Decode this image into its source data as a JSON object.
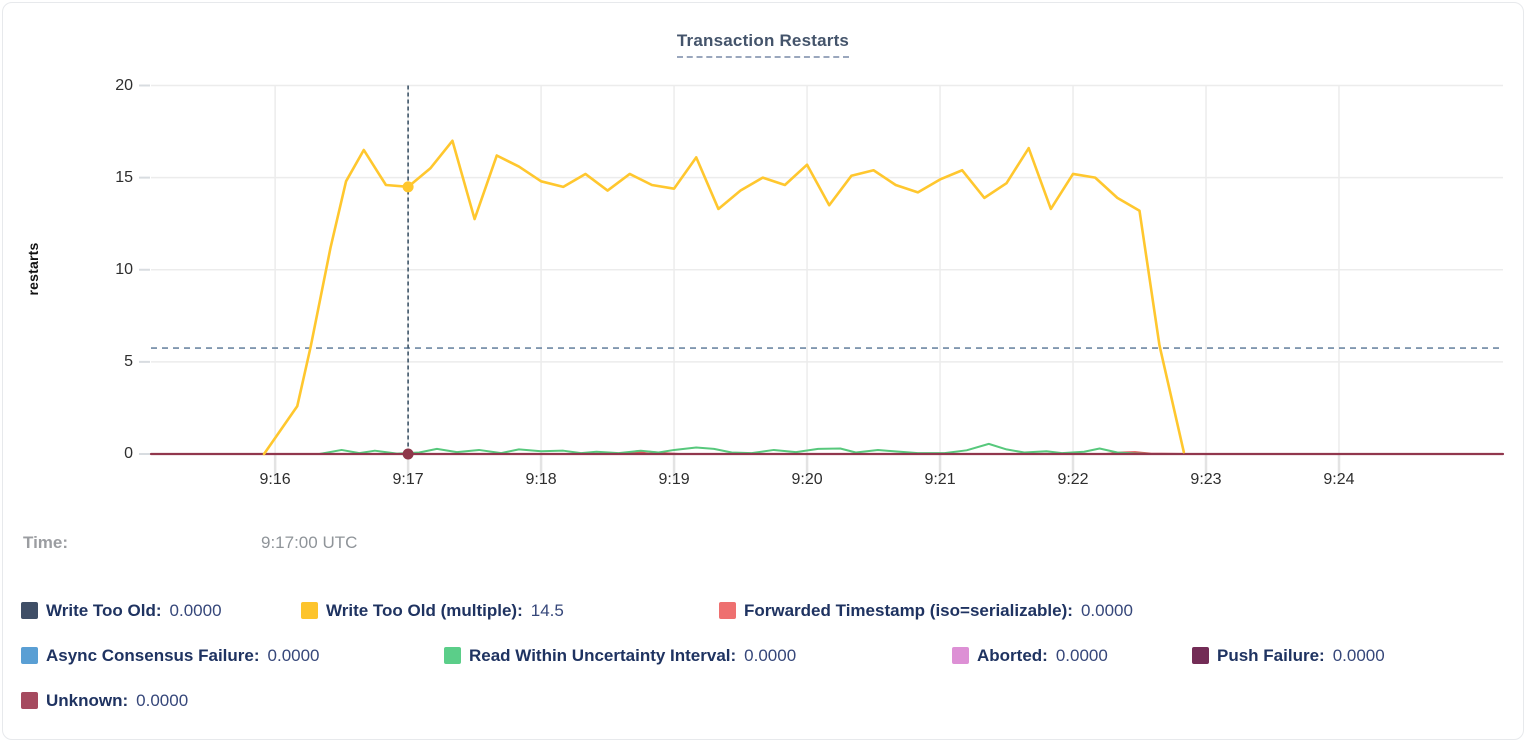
{
  "title": "Transaction Restarts",
  "tooltip": {
    "time_label": "Time:",
    "time_value": "9:17:00 UTC"
  },
  "legend": {
    "rows": [
      [
        {
          "label": "Write Too Old:",
          "value": "0.0000",
          "color": "#3f4e66"
        },
        {
          "label": "Write Too Old (multiple):",
          "value": "14.5",
          "color": "#fdc42c"
        },
        {
          "label": "Forwarded Timestamp (iso=serializable):",
          "value": "0.0000",
          "color": "#ee7070"
        }
      ],
      [
        {
          "label": "Async Consensus Failure:",
          "value": "0.0000",
          "color": "#5a9fd4"
        },
        {
          "label": "Read Within Uncertainty Interval:",
          "value": "0.0000",
          "color": "#5bce89"
        },
        {
          "label": "Aborted:",
          "value": "0.0000",
          "color": "#dd90d5"
        },
        {
          "label": "Push Failure:",
          "value": "0.0000",
          "color": "#732c56"
        }
      ],
      [
        {
          "label": "Unknown:",
          "value": "0.0000",
          "color": "#a54a5f"
        }
      ]
    ]
  },
  "chart_data": {
    "type": "line",
    "title": "Transaction Restarts",
    "xlabel": "",
    "ylabel": "restarts",
    "ylim": [
      0,
      20
    ],
    "y_ticks": [
      0,
      5,
      10,
      15,
      20
    ],
    "x_domain_seconds": [
      4,
      614
    ],
    "x_ticks": [
      {
        "t": 60,
        "label": "9:16"
      },
      {
        "t": 120,
        "label": "9:17"
      },
      {
        "t": 180,
        "label": "9:18"
      },
      {
        "t": 240,
        "label": "9:19"
      },
      {
        "t": 300,
        "label": "9:20"
      },
      {
        "t": 360,
        "label": "9:21"
      },
      {
        "t": 420,
        "label": "9:22"
      },
      {
        "t": 480,
        "label": "9:23"
      },
      {
        "t": 540,
        "label": "9:24"
      }
    ],
    "grid": true,
    "legend_position": "bottom",
    "avg_line": {
      "value": 5.75,
      "color": "#6e88a4"
    },
    "hover": {
      "t": 120,
      "time": "9:17:00 UTC",
      "color": "#3e5569",
      "markers": [
        {
          "series": "Write Too Old (multiple)",
          "value": 14.5,
          "color": "#ffc72e"
        },
        {
          "series": "Unknown",
          "value": 0,
          "color": "#8e3749"
        }
      ]
    },
    "series": [
      {
        "name": "Write Too Old",
        "color": "#3f4e66",
        "width": 2,
        "points": [
          [
            55,
            0
          ],
          [
            470,
            0
          ]
        ]
      },
      {
        "name": "Async Consensus Failure",
        "color": "#5a9fd4",
        "width": 2,
        "points": [
          [
            55,
            0
          ],
          [
            470,
            0
          ]
        ]
      },
      {
        "name": "Aborted",
        "color": "#dd90d5",
        "width": 2,
        "points": [
          [
            55,
            0
          ],
          [
            470,
            0
          ]
        ]
      },
      {
        "name": "Push Failure",
        "color": "#732c56",
        "width": 2,
        "points": [
          [
            55,
            0
          ],
          [
            470,
            0
          ]
        ]
      },
      {
        "name": "Forwarded Timestamp (iso=serializable)",
        "color": "#e05a5a",
        "width": 2,
        "points": [
          [
            55,
            0
          ],
          [
            215,
            0
          ],
          [
            222,
            0.05
          ],
          [
            228,
            0.13
          ],
          [
            235,
            0.05
          ],
          [
            242,
            0
          ],
          [
            435,
            0
          ],
          [
            442,
            0.08
          ],
          [
            448,
            0.1
          ],
          [
            455,
            0.02
          ],
          [
            470,
            0
          ]
        ]
      },
      {
        "name": "Read Within Uncertainty Interval",
        "color": "#57c87c",
        "width": 2,
        "points": [
          [
            80,
            0
          ],
          [
            90,
            0.22
          ],
          [
            98,
            0.05
          ],
          [
            105,
            0.18
          ],
          [
            115,
            0.02
          ],
          [
            125,
            0.08
          ],
          [
            133,
            0.28
          ],
          [
            142,
            0.1
          ],
          [
            152,
            0.22
          ],
          [
            162,
            0.05
          ],
          [
            170,
            0.25
          ],
          [
            180,
            0.15
          ],
          [
            190,
            0.18
          ],
          [
            198,
            0.05
          ],
          [
            205,
            0.12
          ],
          [
            215,
            0.05
          ],
          [
            225,
            0.18
          ],
          [
            233,
            0.08
          ],
          [
            240,
            0.22
          ],
          [
            250,
            0.35
          ],
          [
            258,
            0.28
          ],
          [
            266,
            0.08
          ],
          [
            275,
            0.05
          ],
          [
            285,
            0.22
          ],
          [
            295,
            0.1
          ],
          [
            305,
            0.28
          ],
          [
            315,
            0.3
          ],
          [
            322,
            0.08
          ],
          [
            332,
            0.22
          ],
          [
            342,
            0.12
          ],
          [
            350,
            0.05
          ],
          [
            362,
            0.05
          ],
          [
            372,
            0.2
          ],
          [
            382,
            0.55
          ],
          [
            390,
            0.25
          ],
          [
            398,
            0.08
          ],
          [
            408,
            0.15
          ],
          [
            415,
            0.05
          ],
          [
            425,
            0.12
          ],
          [
            432,
            0.3
          ],
          [
            440,
            0.08
          ],
          [
            448,
            0.03
          ],
          [
            455,
            0
          ]
        ]
      },
      {
        "name": "Unknown",
        "color": "#91374d",
        "width": 2.2,
        "points": [
          [
            4,
            0
          ],
          [
            614,
            0
          ]
        ]
      },
      {
        "name": "Write Too Old (multiple)",
        "color": "#ffc72e",
        "width": 2.6,
        "points": [
          [
            55,
            0
          ],
          [
            70,
            2.6
          ],
          [
            76,
            5.8
          ],
          [
            85,
            11.2
          ],
          [
            92,
            14.8
          ],
          [
            100,
            16.5
          ],
          [
            110,
            14.6
          ],
          [
            120,
            14.5
          ],
          [
            130,
            15.5
          ],
          [
            140,
            17.0
          ],
          [
            150,
            12.75
          ],
          [
            160,
            16.2
          ],
          [
            170,
            15.6
          ],
          [
            180,
            14.8
          ],
          [
            190,
            14.5
          ],
          [
            200,
            15.2
          ],
          [
            210,
            14.3
          ],
          [
            220,
            15.2
          ],
          [
            230,
            14.6
          ],
          [
            240,
            14.4
          ],
          [
            250,
            16.1
          ],
          [
            260,
            13.3
          ],
          [
            270,
            14.3
          ],
          [
            280,
            15.0
          ],
          [
            290,
            14.6
          ],
          [
            300,
            15.7
          ],
          [
            310,
            13.5
          ],
          [
            320,
            15.1
          ],
          [
            330,
            15.4
          ],
          [
            340,
            14.6
          ],
          [
            350,
            14.2
          ],
          [
            360,
            14.9
          ],
          [
            370,
            15.4
          ],
          [
            380,
            13.9
          ],
          [
            390,
            14.7
          ],
          [
            400,
            16.6
          ],
          [
            410,
            13.3
          ],
          [
            420,
            15.2
          ],
          [
            430,
            15.0
          ],
          [
            440,
            13.9
          ],
          [
            450,
            13.2
          ],
          [
            459,
            5.9
          ],
          [
            470,
            0.1
          ]
        ]
      }
    ]
  }
}
